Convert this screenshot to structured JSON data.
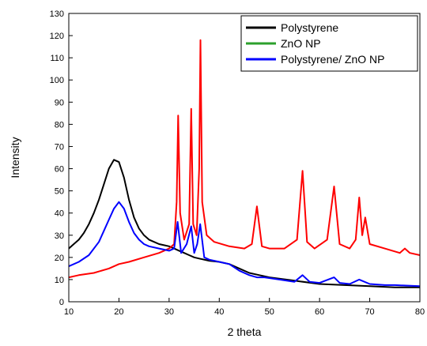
{
  "chart_data": {
    "type": "line",
    "xlabel": "2 theta",
    "ylabel": "Intensity",
    "xlim": [
      10,
      80
    ],
    "ylim": [
      0,
      130
    ],
    "xticks": [
      10,
      20,
      30,
      40,
      50,
      60,
      70,
      80
    ],
    "yticks": [
      0,
      10,
      20,
      30,
      40,
      50,
      60,
      70,
      80,
      90,
      100,
      110,
      120,
      130
    ],
    "grid": false,
    "legend_position": "top-right",
    "series": [
      {
        "name": "Polystyrene",
        "color": "#000000",
        "legend_swatch": "#000000",
        "x": [
          10,
          11,
          12,
          13,
          14,
          15,
          16,
          17,
          18,
          19,
          20,
          21,
          22,
          23,
          24,
          25,
          26,
          27,
          28,
          29,
          30,
          31,
          32,
          33,
          34,
          35,
          36,
          38,
          40,
          42,
          44,
          46,
          48,
          50,
          55,
          60,
          65,
          70,
          75,
          80
        ],
        "y": [
          24,
          26,
          28,
          31,
          35,
          40,
          46,
          53,
          60,
          64,
          63,
          56,
          46,
          38,
          33,
          30,
          28,
          27,
          26,
          25.5,
          25,
          24,
          23,
          22,
          21,
          20,
          19.5,
          18.5,
          18,
          17,
          15,
          13,
          12,
          11,
          9.5,
          8,
          7.5,
          7,
          6.5,
          6.5
        ]
      },
      {
        "name": "ZnO NP",
        "color": "#ff0000",
        "legend_swatch": "#2ca02c",
        "x": [
          10,
          12,
          15,
          18,
          20,
          22,
          25,
          28,
          30,
          31,
          31.5,
          31.8,
          32.2,
          33,
          34,
          34.4,
          34.8,
          35.5,
          36,
          36.25,
          36.6,
          37.5,
          39,
          42,
          45,
          46.5,
          47.5,
          48.5,
          50,
          53,
          55.5,
          56.6,
          57.5,
          59,
          61.5,
          62.9,
          64,
          66,
          67.2,
          67.9,
          68.5,
          69.1,
          70,
          73,
          76,
          77,
          78,
          80
        ],
        "y": [
          11,
          12,
          13,
          15,
          17,
          18,
          20,
          22,
          24,
          26,
          45,
          84,
          40,
          28,
          35,
          87,
          35,
          30,
          60,
          118,
          45,
          30,
          27,
          25,
          24,
          26,
          43,
          25,
          24,
          24,
          28,
          59,
          27,
          24,
          28,
          52,
          26,
          24,
          28,
          47,
          30,
          38,
          26,
          24,
          22,
          24,
          22,
          21
        ]
      },
      {
        "name": "Polystyrene/ ZnO NP",
        "color": "#0000ff",
        "legend_swatch": "#0000ff",
        "x": [
          10,
          12,
          14,
          16,
          17,
          18,
          19,
          20,
          21,
          22,
          23,
          24,
          25,
          26,
          28,
          30,
          31,
          31.7,
          32.4,
          33.5,
          34.4,
          35,
          35.6,
          36.2,
          37,
          38,
          40,
          42,
          44,
          46,
          47.5,
          49,
          52,
          55,
          56.6,
          58,
          60,
          62.9,
          64,
          66,
          67.9,
          70,
          73,
          75,
          80
        ],
        "y": [
          16,
          18,
          21,
          27,
          32,
          37,
          42,
          45,
          42,
          36,
          31,
          28,
          26,
          25,
          24,
          23,
          24,
          36,
          22,
          26,
          34,
          22,
          26,
          35,
          20,
          19,
          18,
          17,
          14,
          12,
          11,
          11,
          10,
          9,
          12,
          9,
          8.5,
          11,
          8.5,
          8,
          10,
          8,
          7.5,
          7.5,
          7
        ]
      }
    ]
  }
}
